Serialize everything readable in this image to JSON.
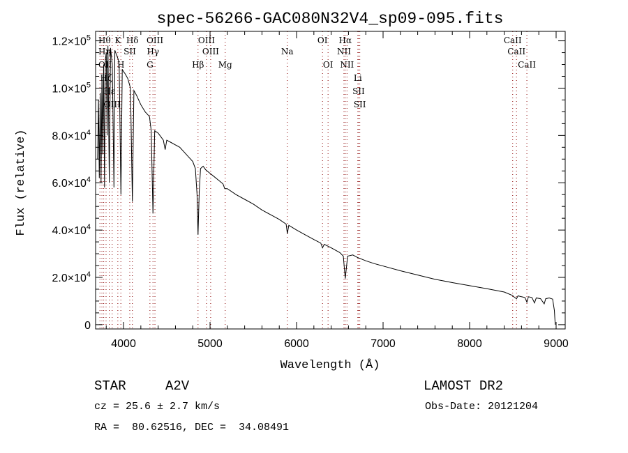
{
  "chart_data": {
    "type": "line",
    "title": "spec-56266-GAC080N32V4_sp09-095.fits",
    "xlabel": "Wavelength (Å)",
    "ylabel": "Flux (relative)",
    "xlim": [
      3677,
      9105
    ],
    "ylim": [
      -1800,
      124000
    ],
    "x_ticks": [
      4000,
      5000,
      6000,
      7000,
      8000,
      9000
    ],
    "x_tick_labels": [
      "4000",
      "5000",
      "6000",
      "7000",
      "8000",
      "9000"
    ],
    "y_ticks": [
      {
        "value": 0,
        "label": "0",
        "exp": ""
      },
      {
        "value": 20000,
        "label": "2.0×10",
        "exp": "4"
      },
      {
        "value": 40000,
        "label": "4.0×10",
        "exp": "4"
      },
      {
        "value": 60000,
        "label": "6.0×10",
        "exp": "4"
      },
      {
        "value": 80000,
        "label": "8.0×10",
        "exp": "4"
      },
      {
        "value": 100000,
        "label": "1.0×10",
        "exp": "5"
      },
      {
        "value": 120000,
        "label": "1.2×10",
        "exp": "5"
      }
    ],
    "series": [
      {
        "name": "spectrum",
        "color": "#000000",
        "points": [
          [
            3700,
            70000
          ],
          [
            3710,
            95000
          ],
          [
            3720,
            62000
          ],
          [
            3730,
            98000
          ],
          [
            3740,
            60000
          ],
          [
            3750,
            105000
          ],
          [
            3760,
            72000
          ],
          [
            3770,
            110000
          ],
          [
            3780,
            58000
          ],
          [
            3790,
            112000
          ],
          [
            3800,
            115000
          ],
          [
            3810,
            80000
          ],
          [
            3820,
            118000
          ],
          [
            3835,
            60000
          ],
          [
            3850,
            117000
          ],
          [
            3870,
            110000
          ],
          [
            3889,
            58000
          ],
          [
            3900,
            116000
          ],
          [
            3920,
            114000
          ],
          [
            3940,
            112000
          ],
          [
            3950,
            110000
          ],
          [
            3970,
            55000
          ],
          [
            3985,
            108000
          ],
          [
            4000,
            107000
          ],
          [
            4020,
            106000
          ],
          [
            4050,
            104000
          ],
          [
            4080,
            100000
          ],
          [
            4102,
            52000
          ],
          [
            4120,
            99000
          ],
          [
            4150,
            97000
          ],
          [
            4200,
            93000
          ],
          [
            4250,
            90000
          ],
          [
            4300,
            88000
          ],
          [
            4320,
            82000
          ],
          [
            4340,
            47000
          ],
          [
            4360,
            82000
          ],
          [
            4400,
            81000
          ],
          [
            4420,
            80000
          ],
          [
            4460,
            78000
          ],
          [
            4481,
            74000
          ],
          [
            4500,
            78000
          ],
          [
            4550,
            77000
          ],
          [
            4600,
            76000
          ],
          [
            4650,
            75000
          ],
          [
            4700,
            73000
          ],
          [
            4750,
            71000
          ],
          [
            4800,
            69000
          ],
          [
            4830,
            66000
          ],
          [
            4850,
            55000
          ],
          [
            4861,
            38000
          ],
          [
            4875,
            56000
          ],
          [
            4890,
            66000
          ],
          [
            4920,
            67000
          ],
          [
            4950,
            65500
          ],
          [
            5000,
            64000
          ],
          [
            5050,
            62500
          ],
          [
            5100,
            61000
          ],
          [
            5150,
            59500
          ],
          [
            5170,
            57500
          ],
          [
            5200,
            57500
          ],
          [
            5300,
            55000
          ],
          [
            5400,
            53000
          ],
          [
            5500,
            51000
          ],
          [
            5600,
            48500
          ],
          [
            5700,
            46500
          ],
          [
            5800,
            44500
          ],
          [
            5880,
            42500
          ],
          [
            5893,
            38500
          ],
          [
            5910,
            42000
          ],
          [
            6000,
            40000
          ],
          [
            6100,
            38000
          ],
          [
            6200,
            36000
          ],
          [
            6280,
            34500
          ],
          [
            6300,
            32500
          ],
          [
            6320,
            34000
          ],
          [
            6400,
            32500
          ],
          [
            6500,
            30500
          ],
          [
            6540,
            29000
          ],
          [
            6563,
            19500
          ],
          [
            6590,
            29000
          ],
          [
            6650,
            29500
          ],
          [
            6700,
            28500
          ],
          [
            6800,
            27000
          ],
          [
            6900,
            25800
          ],
          [
            7000,
            24800
          ],
          [
            7200,
            22800
          ],
          [
            7400,
            21000
          ],
          [
            7600,
            19200
          ],
          [
            7800,
            17800
          ],
          [
            8000,
            16500
          ],
          [
            8200,
            15200
          ],
          [
            8400,
            13800
          ],
          [
            8498,
            12300
          ],
          [
            8510,
            11800
          ],
          [
            8542,
            11000
          ],
          [
            8560,
            12200
          ],
          [
            8600,
            11800
          ],
          [
            8640,
            11500
          ],
          [
            8662,
            9500
          ],
          [
            8680,
            11800
          ],
          [
            8720,
            11500
          ],
          [
            8750,
            9200
          ],
          [
            8770,
            11300
          ],
          [
            8820,
            11000
          ],
          [
            8862,
            8800
          ],
          [
            8880,
            11000
          ],
          [
            8920,
            11300
          ],
          [
            8960,
            10800
          ],
          [
            8980,
            6000
          ],
          [
            8990,
            0
          ]
        ]
      }
    ],
    "line_markers": [
      {
        "wave": 3727,
        "label": "OII",
        "row": 3
      },
      {
        "wave": 3750,
        "label": "Hθ",
        "row": 1
      },
      {
        "wave": 3771,
        "label": "Hη",
        "row": 2
      },
      {
        "wave": 3798,
        "label": "Hζ",
        "row": 3
      },
      {
        "wave": 3835,
        "label": "Hε",
        "row": 2
      },
      {
        "wave": 3869,
        "label": "OIII",
        "row": 2
      },
      {
        "wave": 3934,
        "label": "K",
        "row": 1
      },
      {
        "wave": 3969,
        "label": "H",
        "row": 3
      },
      {
        "wave": 4072,
        "label": "SII",
        "row": 2
      },
      {
        "wave": 4102,
        "label": "Hδ",
        "row": 1
      },
      {
        "wave": 4305,
        "label": "G",
        "row": 3
      },
      {
        "wave": 4340,
        "label": "Hγ",
        "row": 2
      },
      {
        "wave": 4363,
        "label": "OIII",
        "row": 1
      },
      {
        "wave": 4861,
        "label": "Hβ",
        "row": 3
      },
      {
        "wave": 4959,
        "label": "OIII",
        "row": 1
      },
      {
        "wave": 5007,
        "label": "OIII",
        "row": 2
      },
      {
        "wave": 5175,
        "label": "Mg",
        "row": 3
      },
      {
        "wave": 5893,
        "label": "Na",
        "row": 2
      },
      {
        "wave": 6300,
        "label": "OI",
        "row": 1
      },
      {
        "wave": 6364,
        "label": "OI",
        "row": 3
      },
      {
        "wave": 6548,
        "label": "NII",
        "row": 2
      },
      {
        "wave": 6563,
        "label": "Hα",
        "row": 1
      },
      {
        "wave": 6583,
        "label": "NII",
        "row": 3
      },
      {
        "wave": 6708,
        "label": "Li",
        "row": 2
      },
      {
        "wave": 6717,
        "label": "SII",
        "row": 1
      },
      {
        "wave": 6731,
        "label": "SII",
        "row": 3
      },
      {
        "wave": 8498,
        "label": "CaII",
        "row": 1
      },
      {
        "wave": 8542,
        "label": "CaII",
        "row": 2
      },
      {
        "wave": 8662,
        "label": "CaII",
        "row": 3
      }
    ],
    "marker_color": "#8b0000",
    "grid": false,
    "legend": "none"
  },
  "info": {
    "object_class": "STAR",
    "subclass": "A2V",
    "survey": "LAMOST DR2",
    "cz": "cz = 25.6 ± 2.7 km/s",
    "obs_date": "Obs-Date: 20121204",
    "coords": "RA =  80.62516, DEC =  34.08491"
  }
}
